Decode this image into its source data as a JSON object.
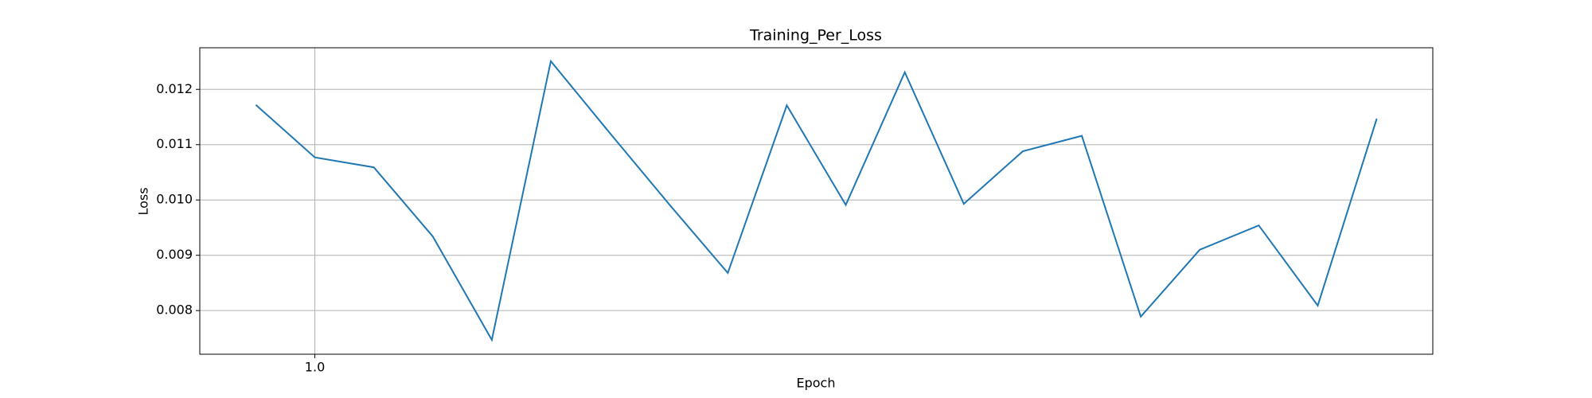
{
  "chart_data": {
    "type": "line",
    "title": "Training_Per_Loss",
    "x_label": "Epoch",
    "y_label": "Loss",
    "x": [
      0,
      1,
      2,
      3,
      4,
      5,
      6,
      7,
      8,
      9,
      10,
      11,
      12,
      13,
      14,
      15,
      16,
      17,
      18,
      19
    ],
    "series": [
      {
        "name": "Loss",
        "color": "#1f77b4",
        "values": [
          0.01172,
          0.01077,
          0.01059,
          0.00934,
          0.00747,
          0.01251,
          0.01121,
          0.00993,
          0.00868,
          0.01171,
          0.00991,
          0.01231,
          0.00993,
          0.01088,
          0.01116,
          0.00789,
          0.0091,
          0.00954,
          0.00809,
          0.01147
        ]
      }
    ],
    "xlim": [
      -0.95,
      19.95
    ],
    "xticks": [
      {
        "value": 1,
        "label": "1.0"
      }
    ],
    "ylim": [
      0.007211,
      0.012752
    ],
    "yticks": [
      0.008,
      0.009,
      {
        "value": 0.01,
        "label": "0.010"
      },
      0.011,
      0.012
    ],
    "grid": true
  }
}
